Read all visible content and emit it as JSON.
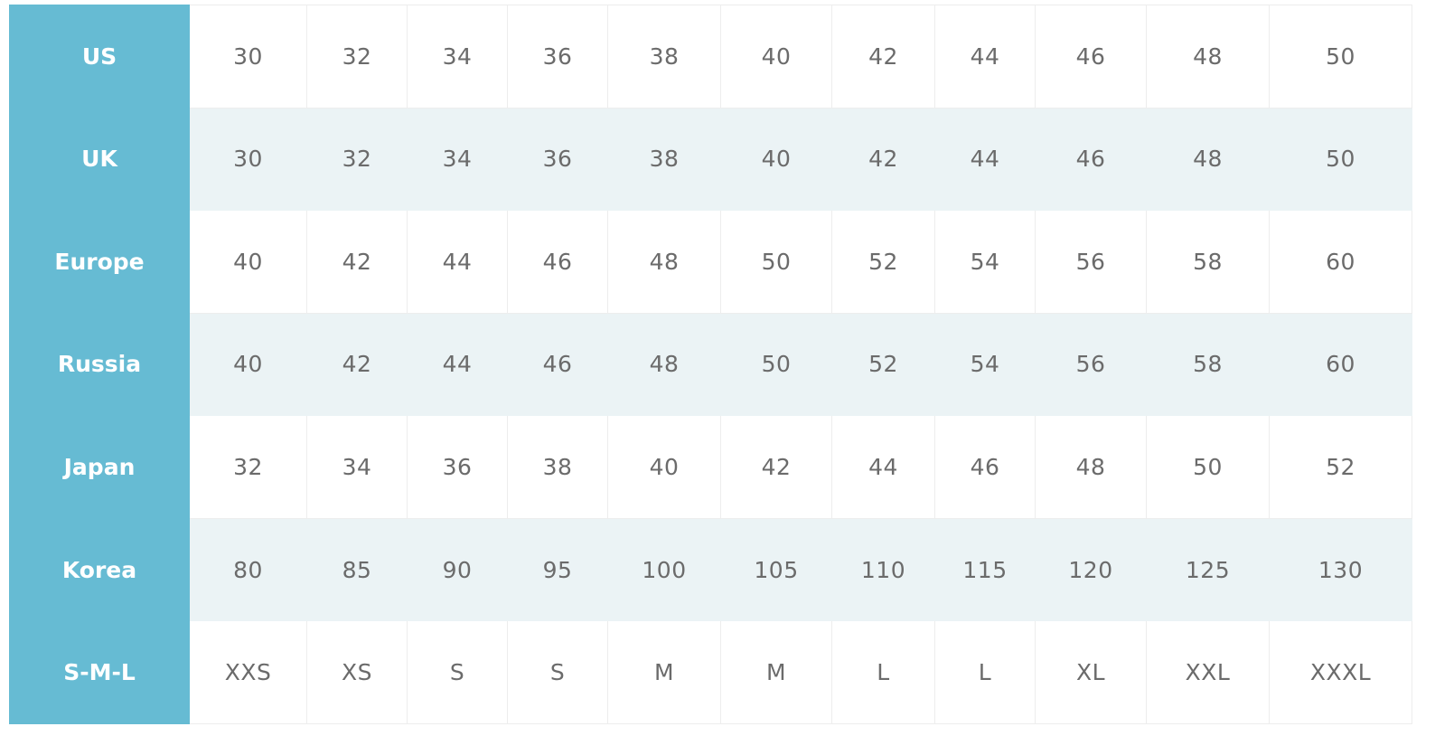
{
  "colors": {
    "header_bg": "#66bbd3",
    "stripe_bg": "#ebf3f5",
    "text": "#6b6b6b"
  },
  "rows": [
    {
      "label": "US",
      "values": [
        "30",
        "32",
        "34",
        "36",
        "38",
        "40",
        "42",
        "44",
        "46",
        "48",
        "50"
      ]
    },
    {
      "label": "UK",
      "values": [
        "30",
        "32",
        "34",
        "36",
        "38",
        "40",
        "42",
        "44",
        "46",
        "48",
        "50"
      ]
    },
    {
      "label": "Europe",
      "values": [
        "40",
        "42",
        "44",
        "46",
        "48",
        "50",
        "52",
        "54",
        "56",
        "58",
        "60"
      ]
    },
    {
      "label": "Russia",
      "values": [
        "40",
        "42",
        "44",
        "46",
        "48",
        "50",
        "52",
        "54",
        "56",
        "58",
        "60"
      ]
    },
    {
      "label": "Japan",
      "values": [
        "32",
        "34",
        "36",
        "38",
        "40",
        "42",
        "44",
        "46",
        "48",
        "50",
        "52"
      ]
    },
    {
      "label": "Korea",
      "values": [
        "80",
        "85",
        "90",
        "95",
        "100",
        "105",
        "110",
        "115",
        "120",
        "125",
        "130"
      ]
    },
    {
      "label": "S-M-L",
      "values": [
        "XXS",
        "XS",
        "S",
        "S",
        "M",
        "M",
        "L",
        "L",
        "XL",
        "XXL",
        "XXXL"
      ]
    }
  ]
}
